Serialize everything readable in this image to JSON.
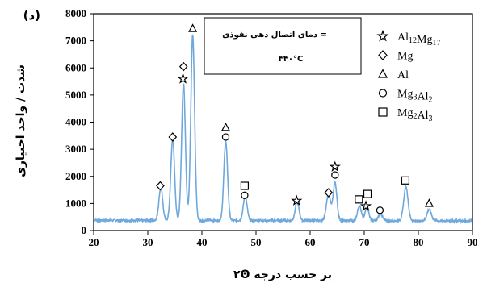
{
  "chart_data": {
    "type": "line",
    "panel_label": "(د)",
    "xlabel": "۲Θ بر حسب درجه",
    "ylabel": "شدت / واحد اختیاری",
    "xlim": [
      20,
      90
    ],
    "ylim": [
      0,
      8000
    ],
    "x_ticks": [
      "20",
      "30",
      "40",
      "50",
      "60",
      "70",
      "80",
      "90"
    ],
    "y_ticks": [
      "0",
      "1000",
      "2000",
      "3000",
      "4000",
      "5000",
      "6000",
      "7000",
      "8000"
    ],
    "grid": false,
    "line_color": "#6fa8dc",
    "baseline": 380,
    "peaks": [
      {
        "x": 32.4,
        "y": 1200,
        "w": 0.35
      },
      {
        "x": 34.6,
        "y": 3000,
        "w": 0.35
      },
      {
        "x": 36.6,
        "y": 5050,
        "w": 0.35
      },
      {
        "x": 38.3,
        "y": 6850,
        "w": 0.35
      },
      {
        "x": 44.4,
        "y": 2900,
        "w": 0.35
      },
      {
        "x": 48.0,
        "y": 900,
        "w": 0.35
      },
      {
        "x": 57.6,
        "y": 700,
        "w": 0.35
      },
      {
        "x": 63.4,
        "y": 950,
        "w": 0.4
      },
      {
        "x": 64.6,
        "y": 1400,
        "w": 0.35
      },
      {
        "x": 69.1,
        "y": 550,
        "w": 0.35
      },
      {
        "x": 70.5,
        "y": 480,
        "w": 0.35
      },
      {
        "x": 73.0,
        "y": 250,
        "w": 0.35
      },
      {
        "x": 77.7,
        "y": 1250,
        "w": 0.4
      },
      {
        "x": 82.0,
        "y": 420,
        "w": 0.4
      }
    ],
    "annotation_box": {
      "line1": "= دمای اتصال دهی نفوذی",
      "line2": "۴۴۰°C"
    },
    "legend": [
      {
        "marker": "star",
        "label": "Al12Mg17"
      },
      {
        "marker": "diamond",
        "label": "Mg"
      },
      {
        "marker": "triangle",
        "label": "Al"
      },
      {
        "marker": "circle",
        "label": "Mg3Al2"
      },
      {
        "marker": "square",
        "label": "Mg2Al3"
      }
    ],
    "legend_placement": "top-right",
    "phase_markers": [
      {
        "marker": "diamond",
        "x": 32.3,
        "y": 1650
      },
      {
        "marker": "diamond",
        "x": 34.6,
        "y": 3450
      },
      {
        "marker": "diamond",
        "x": 36.6,
        "y": 6050
      },
      {
        "marker": "star",
        "x": 36.5,
        "y": 5600
      },
      {
        "marker": "triangle",
        "x": 38.3,
        "y": 7450
      },
      {
        "marker": "triangle",
        "x": 44.4,
        "y": 3800
      },
      {
        "marker": "circle",
        "x": 44.4,
        "y": 3450
      },
      {
        "marker": "square",
        "x": 47.9,
        "y": 1650
      },
      {
        "marker": "circle",
        "x": 47.9,
        "y": 1300
      },
      {
        "marker": "star",
        "x": 57.5,
        "y": 1100
      },
      {
        "marker": "diamond",
        "x": 63.4,
        "y": 1400
      },
      {
        "marker": "star",
        "x": 64.6,
        "y": 2350
      },
      {
        "marker": "circle",
        "x": 64.6,
        "y": 2050
      },
      {
        "marker": "square",
        "x": 69.0,
        "y": 1150
      },
      {
        "marker": "square",
        "x": 70.6,
        "y": 1350
      },
      {
        "marker": "star",
        "x": 70.3,
        "y": 900
      },
      {
        "marker": "circle",
        "x": 72.9,
        "y": 750
      },
      {
        "marker": "square",
        "x": 77.6,
        "y": 1850
      },
      {
        "marker": "triangle",
        "x": 82.0,
        "y": 1000
      }
    ]
  }
}
